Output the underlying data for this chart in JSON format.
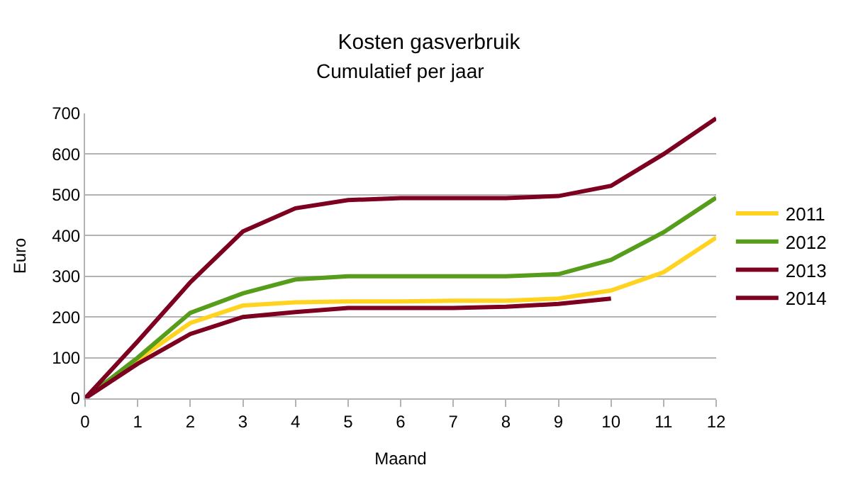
{
  "chart_data": {
    "type": "line",
    "title": "Kosten gasverbruik",
    "subtitle": "Cumulatief per jaar",
    "xlabel": "Maand",
    "ylabel": "Euro",
    "x": [
      0,
      1,
      2,
      3,
      4,
      5,
      6,
      7,
      8,
      9,
      10,
      11,
      12
    ],
    "series": [
      {
        "name": "2011",
        "color": "#ffd320",
        "values": [
          0,
          95,
          185,
          228,
          236,
          238,
          238,
          240,
          240,
          245,
          265,
          310,
          395
        ]
      },
      {
        "name": "2012",
        "color": "#579d1c",
        "values": [
          0,
          100,
          210,
          258,
          292,
          300,
          300,
          300,
          300,
          305,
          340,
          408,
          493
        ]
      },
      {
        "name": "2013",
        "color": "#7e0021",
        "values": [
          0,
          140,
          285,
          410,
          467,
          487,
          492,
          492,
          492,
          497,
          522,
          600,
          688
        ]
      },
      {
        "name": "2014",
        "color": "#7e0021",
        "values": [
          0,
          85,
          158,
          200,
          212,
          222,
          222,
          222,
          225,
          232,
          245,
          null,
          null
        ]
      }
    ],
    "xlim": [
      0,
      12
    ],
    "xticks": [
      0,
      1,
      2,
      3,
      4,
      5,
      6,
      7,
      8,
      9,
      10,
      11,
      12
    ],
    "ylim": [
      0,
      700
    ],
    "yticks": [
      0,
      100,
      200,
      300,
      400,
      500,
      600,
      700
    ],
    "grid": "y",
    "legend": "right",
    "marker": "none",
    "line_style": "solid"
  }
}
